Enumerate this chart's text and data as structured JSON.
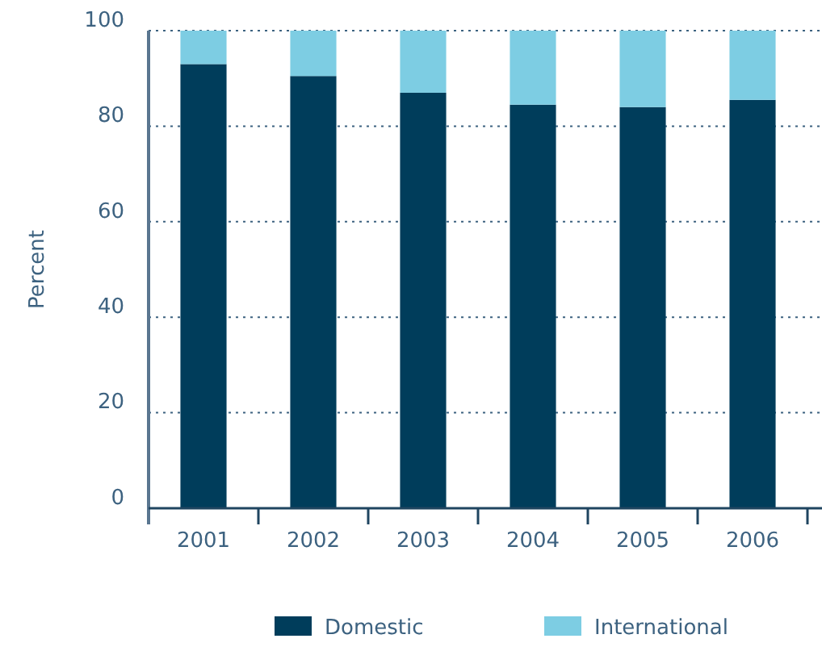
{
  "chart_data": {
    "type": "bar",
    "stacked": true,
    "ylabel": "Percent",
    "categories": [
      "2001",
      "2002",
      "2003",
      "2004",
      "2005",
      "2006"
    ],
    "series": [
      {
        "name": "Domestic",
        "color": "#003d5b",
        "values": [
          93,
          90.5,
          87,
          84.5,
          84,
          85.5
        ]
      },
      {
        "name": "International",
        "color": "#7dcde3",
        "values": [
          7,
          9.5,
          13,
          15.5,
          16,
          14.5
        ]
      }
    ],
    "ylim": [
      0,
      100
    ],
    "yticks": [
      0,
      20,
      40,
      60,
      80,
      100
    ],
    "grid": "y",
    "legend": "bottom"
  }
}
